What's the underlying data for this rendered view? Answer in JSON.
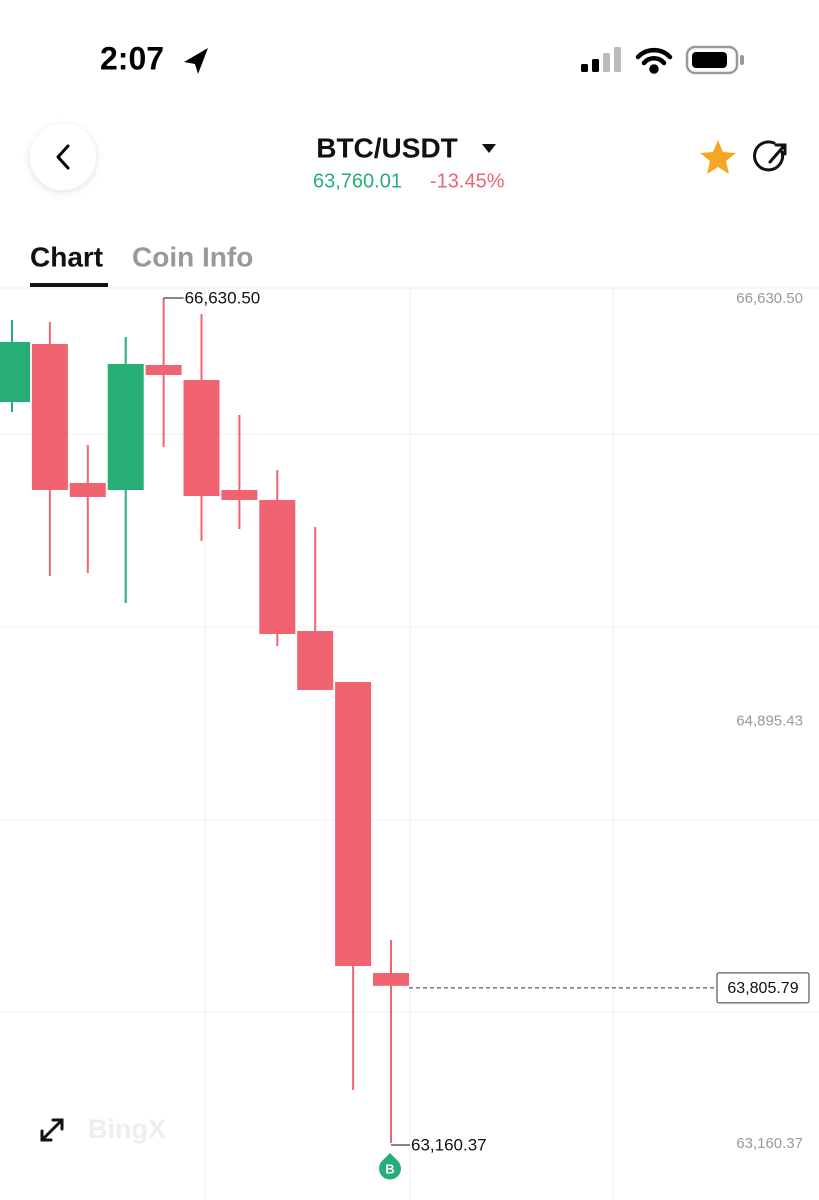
{
  "status_bar": {
    "time": "2:07"
  },
  "header": {
    "pair": "BTC/USDT",
    "price": "63,760.01",
    "change": "-13.45%"
  },
  "tabs": [
    "Chart",
    "Coin Info"
  ],
  "watermark": "BingX",
  "chart_data": {
    "type": "candlestick",
    "categories": [
      null,
      null,
      null,
      null,
      null,
      null,
      null,
      null,
      null,
      null,
      null
    ],
    "open": [
      66203.4,
      66441.6,
      65870.8,
      65842.0,
      66355.4,
      66293.8,
      65842.0,
      65800.9,
      65263.0,
      65053.5,
      63858.5
    ],
    "high": [
      66540.2,
      66531.9,
      66026.8,
      66470.3,
      66630.5,
      66564.8,
      66150.0,
      65924.2,
      65690.1,
      65053.5,
      63994.0
    ],
    "low": [
      66162.3,
      65488.8,
      65501.2,
      65378.0,
      66018.6,
      65632.6,
      65681.9,
      65201.4,
      65020.7,
      63378.0,
      63160.37
    ],
    "close": [
      66449.8,
      65842.0,
      65813.3,
      66359.5,
      66314.3,
      65817.4,
      65800.9,
      65250.7,
      65020.7,
      63887.2,
      63805.79
    ],
    "up_color": "#26ae76",
    "down_color": "#f06472",
    "ylim": [
      62926.3,
      66671.6
    ],
    "yticks": [
      {
        "value": 66630.5,
        "label": "66,630.50"
      },
      {
        "value": 64895.43,
        "label": "64,895.43"
      },
      {
        "value": 63160.37,
        "label": "63,160.37"
      }
    ],
    "last_price": {
      "value": 63805.79,
      "label": "63,805.79"
    },
    "high_annotation": {
      "value": 66630.5,
      "label": "66,630.50"
    },
    "low_annotation": {
      "value": 63160.37,
      "label": "63,160.37"
    },
    "marker": "B"
  }
}
